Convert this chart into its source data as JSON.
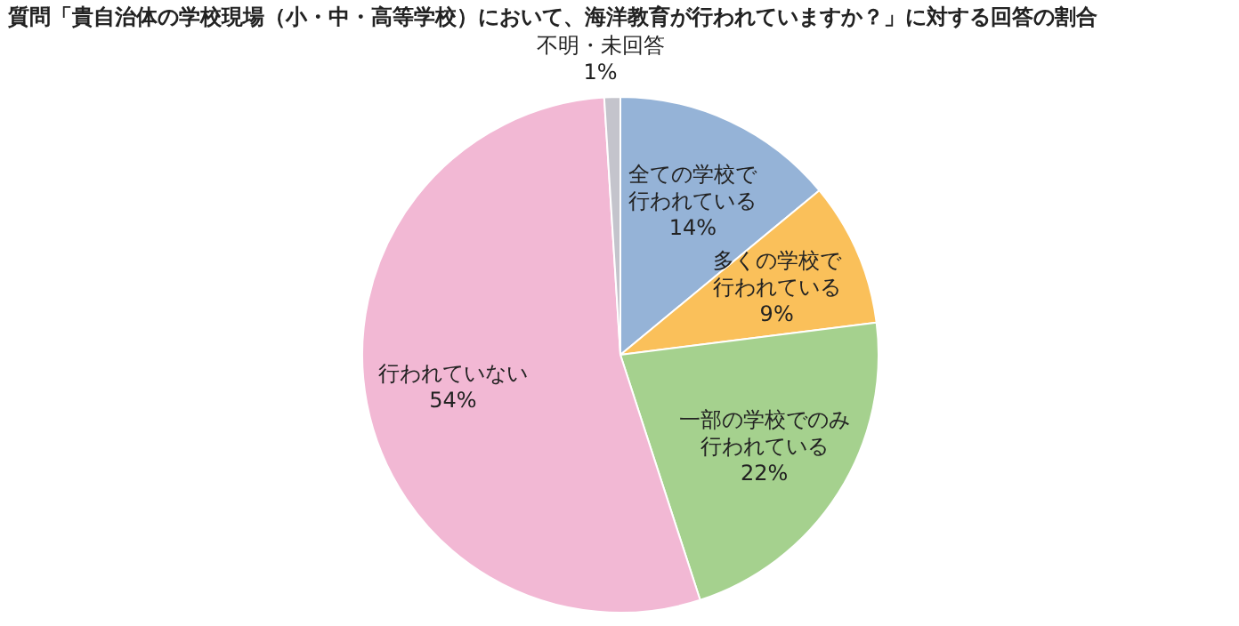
{
  "chart_data": {
    "type": "pie",
    "title": "質問「貴自治体の学校現場（小・中・高等学校）において、海洋教育が行われていますか？」に対する回答の割合",
    "categories": [
      "全ての学校で行われている",
      "多くの学校で行われている",
      "一部の学校でのみ行われている",
      "行われていない",
      "不明・未回答"
    ],
    "values": [
      14,
      9,
      22,
      54,
      1
    ],
    "value_labels": [
      "14%",
      "9%",
      "22%",
      "54%",
      "1%"
    ],
    "colors": [
      "#95b3d7",
      "#fac05a",
      "#a5d18e",
      "#f2b8d4",
      "#c4c4cc"
    ]
  }
}
